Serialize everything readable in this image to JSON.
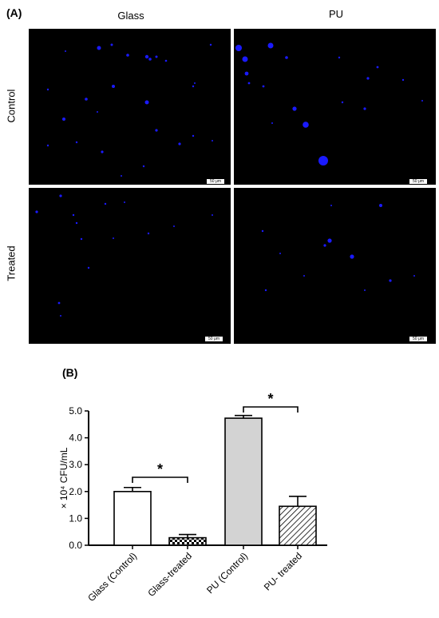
{
  "panel_a": {
    "label": "(A)",
    "col_headers": [
      "Glass",
      "PU"
    ],
    "row_headers": [
      "Control",
      "Treated"
    ],
    "scale_text": "50 μm",
    "dot_color": "#1a1aff"
  },
  "chart_data": {
    "label": "(B)",
    "type": "bar",
    "categories": [
      "Glass (Control)",
      "Glass-treated",
      "PU (Control)",
      "PU- treated"
    ],
    "values": [
      2.0,
      0.28,
      4.73,
      1.45
    ],
    "errors": [
      0.15,
      0.12,
      0.1,
      0.37
    ],
    "patterns": [
      "none",
      "checker",
      "solid-gray",
      "hatch"
    ],
    "ylabel": "× 10⁴ CFU/mL",
    "ylim": [
      0,
      5.0
    ],
    "yticks": [
      "0.0",
      "1.0",
      "2.0",
      "3.0",
      "4.0",
      "5.0"
    ],
    "significance": [
      {
        "from": 0,
        "to": 1,
        "symbol": "*"
      },
      {
        "from": 2,
        "to": 3,
        "symbol": "*"
      }
    ]
  }
}
